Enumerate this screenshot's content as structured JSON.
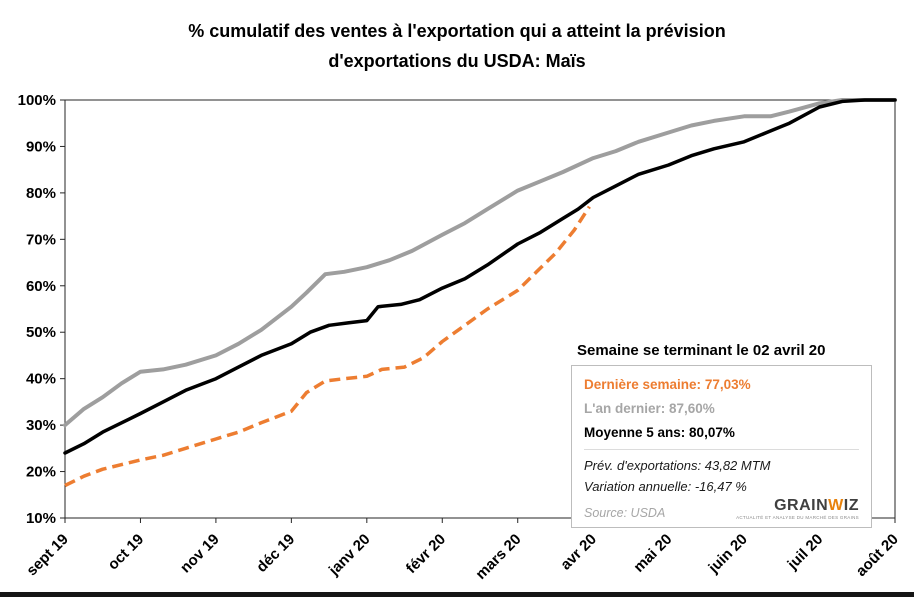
{
  "title": {
    "line1": "% cumulatif des ventes à l'exportation qui a atteint la prévision",
    "line2": "d'exportations du USDA: Maïs"
  },
  "chart_data": {
    "type": "line",
    "title": "% cumulatif des ventes à l'exportation qui a atteint la prévision d'exportations du USDA: Maïs",
    "xlabel": "",
    "ylabel": "",
    "ylim": [
      10,
      100
    ],
    "y_ticks": [
      100,
      90,
      80,
      70,
      60,
      50,
      40,
      30,
      20,
      10
    ],
    "y_tick_suffix": "%",
    "x_tick_labels": [
      "sept 19",
      "oct 19",
      "nov 19",
      "déc 19",
      "janv 20",
      "févr 20",
      "mars 20",
      "avr 20",
      "mai 20",
      "juin 20",
      "juil 20",
      "août 20"
    ],
    "x_unit": "month-index (0 = sept 19)",
    "grid": false,
    "legend_position": "bottom-right-box",
    "series": [
      {
        "key": "an-dernier",
        "name": "L'an dernier",
        "color": "#9E9E9E",
        "width": 4,
        "dash": null,
        "points": [
          [
            0,
            30
          ],
          [
            0.25,
            33.5
          ],
          [
            0.5,
            36
          ],
          [
            0.75,
            39
          ],
          [
            1,
            41.5
          ],
          [
            1.3,
            42
          ],
          [
            1.6,
            43
          ],
          [
            2,
            45
          ],
          [
            2.3,
            47.5
          ],
          [
            2.6,
            50.5
          ],
          [
            3,
            55.5
          ],
          [
            3.2,
            58.5
          ],
          [
            3.45,
            62.5
          ],
          [
            3.7,
            63
          ],
          [
            4,
            64
          ],
          [
            4.3,
            65.5
          ],
          [
            4.6,
            67.5
          ],
          [
            5,
            71
          ],
          [
            5.3,
            73.5
          ],
          [
            5.6,
            76.5
          ],
          [
            6,
            80.5
          ],
          [
            6.3,
            82.5
          ],
          [
            6.6,
            84.5
          ],
          [
            7,
            87.5
          ],
          [
            7.3,
            89
          ],
          [
            7.6,
            91
          ],
          [
            8,
            93
          ],
          [
            8.3,
            94.5
          ],
          [
            8.6,
            95.5
          ],
          [
            9,
            96.5
          ],
          [
            9.35,
            96.5
          ],
          [
            9.6,
            97.5
          ],
          [
            10,
            99.3
          ],
          [
            10.3,
            100
          ],
          [
            11,
            100
          ]
        ]
      },
      {
        "key": "moyenne-5-ans",
        "name": "Moyenne 5 ans",
        "color": "#000000",
        "width": 3.5,
        "dash": null,
        "points": [
          [
            0,
            24
          ],
          [
            0.25,
            26
          ],
          [
            0.5,
            28.5
          ],
          [
            0.75,
            30.5
          ],
          [
            1,
            32.5
          ],
          [
            1.3,
            35
          ],
          [
            1.6,
            37.5
          ],
          [
            2,
            40
          ],
          [
            2.3,
            42.5
          ],
          [
            2.6,
            45
          ],
          [
            3,
            47.5
          ],
          [
            3.25,
            50
          ],
          [
            3.5,
            51.5
          ],
          [
            3.75,
            52
          ],
          [
            4,
            52.5
          ],
          [
            4.15,
            55.5
          ],
          [
            4.45,
            56
          ],
          [
            4.7,
            57
          ],
          [
            5,
            59.5
          ],
          [
            5.3,
            61.5
          ],
          [
            5.6,
            64.5
          ],
          [
            6,
            69
          ],
          [
            6.3,
            71.5
          ],
          [
            6.6,
            74.5
          ],
          [
            6.8,
            76.5
          ],
          [
            7,
            79
          ],
          [
            7.3,
            81.5
          ],
          [
            7.6,
            84
          ],
          [
            8,
            86
          ],
          [
            8.3,
            88
          ],
          [
            8.6,
            89.5
          ],
          [
            9,
            91
          ],
          [
            9.3,
            93
          ],
          [
            9.6,
            95
          ],
          [
            10,
            98.5
          ],
          [
            10.3,
            99.7
          ],
          [
            10.6,
            100
          ],
          [
            11,
            100
          ]
        ]
      },
      {
        "key": "derniere-semaine",
        "name": "Dernière semaine",
        "color": "#ED7D31",
        "width": 3.5,
        "dash": [
          11,
          6
        ],
        "points": [
          [
            0,
            17
          ],
          [
            0.25,
            19
          ],
          [
            0.5,
            20.5
          ],
          [
            0.75,
            21.5
          ],
          [
            1,
            22.5
          ],
          [
            1.3,
            23.5
          ],
          [
            1.6,
            25
          ],
          [
            2,
            27
          ],
          [
            2.3,
            28.5
          ],
          [
            2.6,
            30.5
          ],
          [
            3,
            33
          ],
          [
            3.2,
            37
          ],
          [
            3.45,
            39.5
          ],
          [
            3.7,
            40
          ],
          [
            4,
            40.5
          ],
          [
            4.2,
            42
          ],
          [
            4.5,
            42.5
          ],
          [
            4.75,
            44.5
          ],
          [
            5,
            48
          ],
          [
            5.3,
            51.5
          ],
          [
            5.6,
            55
          ],
          [
            6,
            59
          ],
          [
            6.25,
            63
          ],
          [
            6.5,
            67
          ],
          [
            6.75,
            72
          ],
          [
            6.95,
            77.03
          ]
        ]
      }
    ]
  },
  "info_box": {
    "header": "Semaine se terminant le 02 avril 20",
    "rows": [
      {
        "label": "Dernière semaine:",
        "value": "77,03%",
        "color": "#ED7D31"
      },
      {
        "label": "L'an dernier:",
        "value": "87,60%",
        "color": "#A6A6A6"
      },
      {
        "label": "Moyenne 5 ans:",
        "value": "80,07%",
        "color": "#000000"
      }
    ],
    "stats": [
      {
        "text": "Prév. d'exportations:  43,82  MTM"
      },
      {
        "text": "Variation  annuelle:  -16,47 %"
      }
    ],
    "source": "Source:  USDA"
  },
  "logo": {
    "part1": "GRAIN",
    "part2": "W",
    "part3": "IZ",
    "tagline": "ACTUALITÉ ET ANALYSE DU MARCHÉ DES GRAINS",
    "accent_color": "#E8820C"
  }
}
